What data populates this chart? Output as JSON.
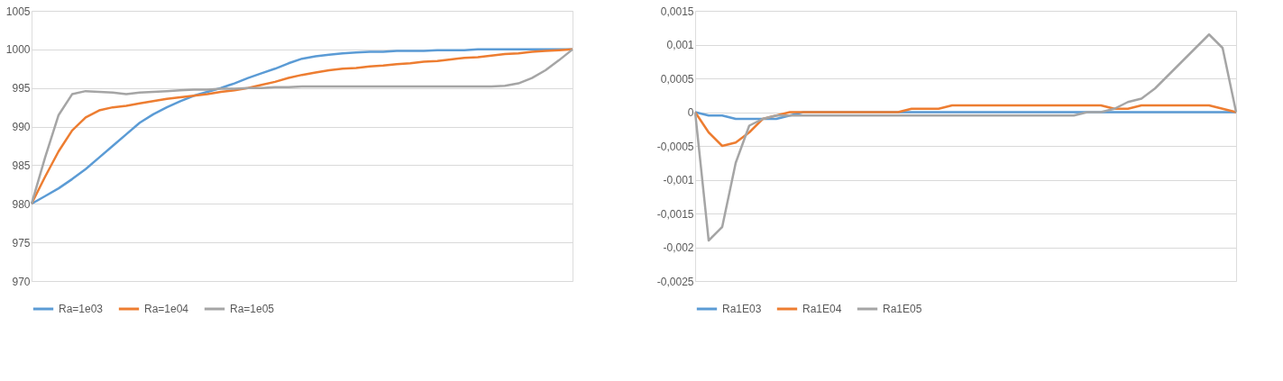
{
  "chart_data": [
    {
      "type": "line",
      "categories": [
        null,
        null,
        null,
        null,
        null,
        null,
        null,
        null,
        null,
        null,
        null,
        null,
        null,
        null,
        null,
        null,
        null,
        null,
        null,
        null,
        null,
        null,
        null,
        null,
        null,
        null,
        null,
        null,
        null,
        null,
        null,
        null,
        null,
        null,
        null,
        null,
        null,
        null,
        null,
        null,
        null
      ],
      "series": [
        {
          "name": "Ra=1e03",
          "color": "#5b9bd5",
          "values": [
            980,
            981,
            982,
            983.2,
            984.5,
            986,
            987.5,
            989,
            990.5,
            991.6,
            992.5,
            993.3,
            994,
            994.5,
            995,
            995.6,
            996.3,
            996.9,
            997.5,
            998.2,
            998.8,
            999.1,
            999.3,
            999.5,
            999.6,
            999.7,
            999.7,
            999.8,
            999.8,
            999.8,
            999.9,
            999.9,
            999.9,
            1000,
            1000,
            1000,
            1000,
            1000,
            1000,
            1000,
            1000
          ]
        },
        {
          "name": "Ra=1e04",
          "color": "#ed7d31",
          "values": [
            980,
            983.5,
            986.8,
            989.5,
            991.2,
            992.1,
            992.5,
            992.7,
            993,
            993.3,
            993.6,
            993.8,
            994,
            994.2,
            994.5,
            994.7,
            995,
            995.4,
            995.8,
            996.3,
            996.7,
            997,
            997.3,
            997.5,
            997.6,
            997.8,
            997.9,
            998.1,
            998.2,
            998.4,
            998.5,
            998.7,
            998.9,
            999,
            999.2,
            999.4,
            999.5,
            999.7,
            999.8,
            999.9,
            1000
          ]
        },
        {
          "name": "Ra=1e05",
          "color": "#a5a5a5",
          "values": [
            980,
            986,
            991.5,
            994.2,
            994.6,
            994.5,
            994.4,
            994.2,
            994.4,
            994.5,
            994.6,
            994.7,
            994.8,
            994.8,
            994.9,
            994.9,
            995,
            995,
            995.1,
            995.1,
            995.2,
            995.2,
            995.2,
            995.2,
            995.2,
            995.2,
            995.2,
            995.2,
            995.2,
            995.2,
            995.2,
            995.2,
            995.2,
            995.2,
            995.2,
            995.3,
            995.6,
            996.3,
            997.3,
            998.6,
            1000
          ]
        }
      ],
      "ylim": [
        970,
        1005
      ],
      "yticks": [
        970,
        975,
        980,
        985,
        990,
        995,
        1000,
        1005
      ],
      "grid": "y",
      "legend": "bottom",
      "tick_labels": "y",
      "marker": "none",
      "line_style": "solid"
    },
    {
      "type": "line",
      "categories": [
        null,
        null,
        null,
        null,
        null,
        null,
        null,
        null,
        null,
        null,
        null,
        null,
        null,
        null,
        null,
        null,
        null,
        null,
        null,
        null,
        null,
        null,
        null,
        null,
        null,
        null,
        null,
        null,
        null,
        null,
        null,
        null,
        null,
        null,
        null,
        null,
        null,
        null,
        null,
        null,
        null
      ],
      "series": [
        {
          "name": "Ra1E03",
          "color": "#5b9bd5",
          "values": [
            0,
            -5e-05,
            -5e-05,
            -0.0001,
            -0.0001,
            -0.0001,
            -0.0001,
            -5e-05,
            0,
            0,
            0,
            0,
            0,
            0,
            0,
            0,
            0,
            0,
            0,
            0,
            0,
            0,
            0,
            0,
            0,
            0,
            0,
            0,
            0,
            0,
            0,
            0,
            0,
            0,
            0,
            0,
            0,
            0,
            0,
            0,
            0
          ]
        },
        {
          "name": "Ra1E04",
          "color": "#ed7d31",
          "values": [
            0,
            -0.0003,
            -0.0005,
            -0.00045,
            -0.0003,
            -0.0001,
            -5e-05,
            0,
            0,
            0,
            0,
            0,
            0,
            0,
            0,
            0,
            5e-05,
            5e-05,
            5e-05,
            0.0001,
            0.0001,
            0.0001,
            0.0001,
            0.0001,
            0.0001,
            0.0001,
            0.0001,
            0.0001,
            0.0001,
            0.0001,
            0.0001,
            5e-05,
            5e-05,
            0.0001,
            0.0001,
            0.0001,
            0.0001,
            0.0001,
            0.0001,
            5e-05,
            0
          ]
        },
        {
          "name": "Ra1E05",
          "color": "#a5a5a5",
          "values": [
            0,
            -0.0019,
            -0.0017,
            -0.00075,
            -0.0002,
            -0.0001,
            -5e-05,
            -5e-05,
            -5e-05,
            -5e-05,
            -5e-05,
            -5e-05,
            -5e-05,
            -5e-05,
            -5e-05,
            -5e-05,
            -5e-05,
            -5e-05,
            -5e-05,
            -5e-05,
            -5e-05,
            -5e-05,
            -5e-05,
            -5e-05,
            -5e-05,
            -5e-05,
            -5e-05,
            -5e-05,
            -5e-05,
            0,
            0,
            5e-05,
            0.00015,
            0.0002,
            0.00035,
            0.00055,
            0.00075,
            0.00095,
            0.00115,
            0.00095,
            0
          ]
        }
      ],
      "ylim": [
        -0.0025,
        0.0015
      ],
      "yticks": [
        {
          "value": -0.0025,
          "label": "-0,0025"
        },
        {
          "value": -0.002,
          "label": "-0,002"
        },
        {
          "value": -0.0015,
          "label": "-0,0015"
        },
        {
          "value": -0.001,
          "label": "-0,001"
        },
        {
          "value": -0.0005,
          "label": "-0,0005"
        },
        {
          "value": 0,
          "label": "0"
        },
        {
          "value": 0.0005,
          "label": "0,0005"
        },
        {
          "value": 0.001,
          "label": "0,001"
        },
        {
          "value": 0.0015,
          "label": "0,0015"
        }
      ],
      "grid": "y",
      "legend": "bottom",
      "tick_labels": "y",
      "marker": "none",
      "line_style": "solid"
    }
  ]
}
